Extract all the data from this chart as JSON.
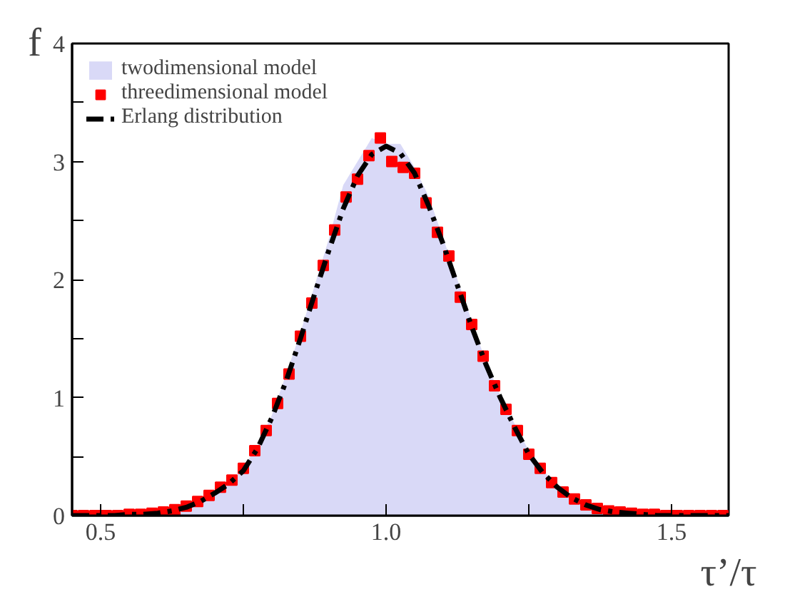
{
  "chart_data": {
    "type": "line",
    "xlabel": "τ’/τ",
    "ylabel": "f",
    "xlim": [
      0.45,
      1.6
    ],
    "ylim": [
      0,
      4
    ],
    "xticks": [
      0.5,
      {
        "value": 0.75,
        "label": null
      },
      {
        "value": 1.0,
        "label": "1.0"
      },
      {
        "value": 1.25,
        "label": null
      },
      1.5
    ],
    "yticks": [
      0,
      {
        "value": 0.5,
        "label": null
      },
      1,
      {
        "value": 1.5,
        "label": null
      },
      2,
      {
        "value": 2.5,
        "label": null
      },
      3,
      {
        "value": 3.5,
        "label": null
      },
      4
    ],
    "grid": false,
    "legend": "top left",
    "series": [
      {
        "name": "twodimensional model",
        "type": "area",
        "color": "#d9d9f7",
        "x": [
          0.45,
          0.475,
          0.5,
          0.525,
          0.55,
          0.575,
          0.6,
          0.625,
          0.65,
          0.675,
          0.7,
          0.725,
          0.75,
          0.775,
          0.8,
          0.825,
          0.85,
          0.875,
          0.9,
          0.925,
          0.95,
          0.975,
          1.0,
          1.025,
          1.05,
          1.075,
          1.1,
          1.125,
          1.15,
          1.175,
          1.2,
          1.225,
          1.25,
          1.275,
          1.3,
          1.325,
          1.35,
          1.375,
          1.4,
          1.425,
          1.45,
          1.475,
          1.5,
          1.525,
          1.55,
          1.575,
          1.6
        ],
        "values": [
          0,
          0,
          0,
          0,
          0.01,
          0.01,
          0.02,
          0.04,
          0.08,
          0.13,
          0.2,
          0.29,
          0.4,
          0.6,
          0.85,
          1.2,
          1.55,
          1.95,
          2.35,
          2.8,
          3.0,
          3.2,
          3.15,
          3.15,
          2.95,
          2.7,
          2.35,
          2.0,
          1.65,
          1.3,
          1.02,
          0.78,
          0.55,
          0.38,
          0.26,
          0.16,
          0.1,
          0.06,
          0.04,
          0.02,
          0.01,
          0.01,
          0,
          0,
          0,
          0,
          0
        ]
      },
      {
        "name": "threedimensional model",
        "type": "scatter",
        "marker": "square",
        "color": "#ff0000",
        "x": [
          0.45,
          0.47,
          0.49,
          0.51,
          0.53,
          0.55,
          0.57,
          0.59,
          0.61,
          0.63,
          0.65,
          0.67,
          0.69,
          0.71,
          0.73,
          0.75,
          0.77,
          0.79,
          0.81,
          0.83,
          0.85,
          0.87,
          0.89,
          0.91,
          0.93,
          0.95,
          0.97,
          0.99,
          1.01,
          1.03,
          1.05,
          1.07,
          1.09,
          1.11,
          1.13,
          1.15,
          1.17,
          1.19,
          1.21,
          1.23,
          1.25,
          1.27,
          1.29,
          1.31,
          1.33,
          1.35,
          1.37,
          1.39,
          1.41,
          1.43,
          1.45,
          1.47,
          1.49,
          1.51,
          1.53,
          1.55,
          1.57,
          1.59
        ],
        "values": [
          0,
          0,
          0,
          0,
          0,
          0.01,
          0.01,
          0.02,
          0.03,
          0.05,
          0.08,
          0.12,
          0.17,
          0.24,
          0.3,
          0.4,
          0.55,
          0.72,
          0.95,
          1.2,
          1.52,
          1.8,
          2.12,
          2.42,
          2.7,
          2.85,
          3.05,
          3.2,
          3.0,
          2.95,
          2.9,
          2.65,
          2.4,
          2.2,
          1.85,
          1.62,
          1.35,
          1.1,
          0.9,
          0.72,
          0.52,
          0.4,
          0.28,
          0.2,
          0.14,
          0.09,
          0.06,
          0.04,
          0.03,
          0.02,
          0.01,
          0.01,
          0,
          0,
          0,
          0,
          0,
          0
        ]
      },
      {
        "name": "Erlang distribution",
        "line_style": "dashed",
        "color": "#000000",
        "x": [
          0.45,
          0.475,
          0.5,
          0.525,
          0.55,
          0.575,
          0.6,
          0.625,
          0.65,
          0.675,
          0.7,
          0.725,
          0.75,
          0.775,
          0.8,
          0.825,
          0.85,
          0.875,
          0.9,
          0.925,
          0.95,
          0.975,
          1.0,
          1.025,
          1.05,
          1.075,
          1.1,
          1.125,
          1.15,
          1.175,
          1.2,
          1.225,
          1.25,
          1.275,
          1.3,
          1.325,
          1.35,
          1.375,
          1.4,
          1.425,
          1.45,
          1.475,
          1.5,
          1.525,
          1.55,
          1.575,
          1.6
        ],
        "values": [
          0,
          0,
          0,
          0,
          0.01,
          0.01,
          0.02,
          0.04,
          0.07,
          0.12,
          0.19,
          0.27,
          0.38,
          0.57,
          0.83,
          1.14,
          1.5,
          1.88,
          2.25,
          2.6,
          2.88,
          3.06,
          3.13,
          3.07,
          2.9,
          2.62,
          2.3,
          1.95,
          1.6,
          1.28,
          1.0,
          0.75,
          0.52,
          0.36,
          0.24,
          0.15,
          0.09,
          0.05,
          0.03,
          0.02,
          0.01,
          0,
          0,
          0,
          0,
          0,
          0
        ]
      }
    ]
  }
}
